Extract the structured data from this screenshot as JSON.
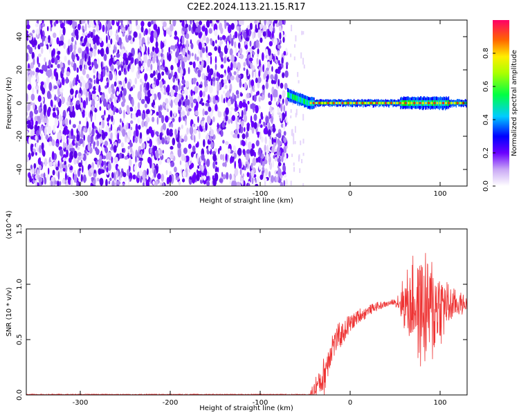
{
  "title": "C2E2.2024.113.21.15.R17",
  "chart_data": [
    {
      "type": "heatmap",
      "name": "spectrogram",
      "xlabel": "Height of straight line (km)",
      "ylabel": "Frequency (Hz)",
      "xlim": [
        -360,
        130
      ],
      "ylim": [
        -50,
        50
      ],
      "xticks": [
        -300,
        -200,
        -100,
        0,
        100
      ],
      "yticks": [
        -40,
        -20,
        0,
        20,
        40
      ],
      "noise_region_x": [
        -360,
        -70
      ],
      "signal_region_x": [
        -70,
        130
      ],
      "signal_center_freq": 0,
      "colorbar": {
        "label": "Normalized spectral amplitude",
        "range": [
          0.0,
          1.0
        ],
        "ticks": [
          0.0,
          0.2,
          0.4,
          0.6,
          0.8
        ]
      }
    },
    {
      "type": "line",
      "name": "snr",
      "xlabel": "Height of straight line (km)",
      "ylabel": "SNR (10 * v/v)",
      "multiplier": "(x10^4)",
      "xlim": [
        -360,
        130
      ],
      "ylim": [
        0.0,
        1.5
      ],
      "xticks": [
        -300,
        -200,
        -100,
        0,
        100
      ],
      "yticks": [
        0.0,
        0.5,
        1.0,
        1.5
      ],
      "ytick_labels": [
        "0.0",
        "0.5",
        "1.0",
        "1.5"
      ],
      "color": "#ee3333",
      "envelope": {
        "x": [
          -360,
          -45,
          -40,
          -30,
          -25,
          -20,
          -10,
          0,
          10,
          20,
          30,
          40,
          50,
          60,
          70,
          80,
          90,
          100,
          110,
          120,
          130
        ],
        "level": [
          0.0,
          0.0,
          0.05,
          0.15,
          0.3,
          0.45,
          0.55,
          0.65,
          0.71,
          0.76,
          0.8,
          0.82,
          0.84,
          0.84,
          0.82,
          0.8,
          0.78,
          0.8,
          0.8,
          0.82,
          0.82
        ],
        "spread": [
          0.01,
          0.01,
          0.1,
          0.18,
          0.2,
          0.15,
          0.12,
          0.1,
          0.08,
          0.05,
          0.04,
          0.03,
          0.03,
          0.25,
          0.45,
          0.6,
          0.55,
          0.4,
          0.2,
          0.12,
          0.08
        ]
      }
    }
  ]
}
